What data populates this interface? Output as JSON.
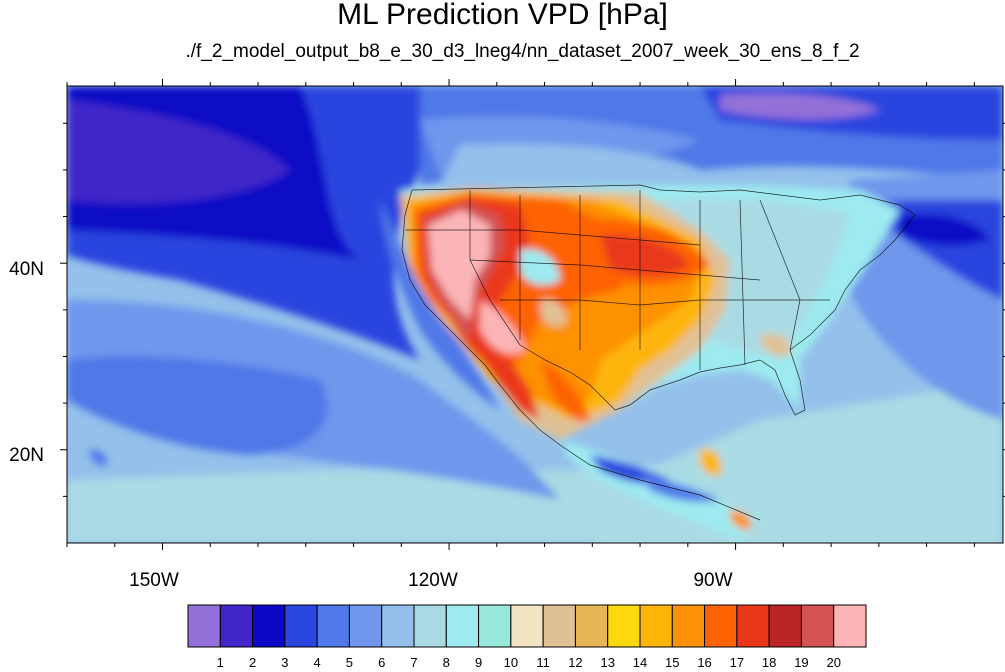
{
  "title": "ML Prediction VPD [hPa]",
  "subtitle": "./f_2_model_output_b8_e_30_d3_lneg4/nn_dataset_2007_week_30_ens_8_f_2",
  "map": {
    "lon_range": [
      -160,
      -62
    ],
    "lat_range": [
      10,
      59
    ],
    "lat_ticks": [
      {
        "lat": 40,
        "label": "40N"
      },
      {
        "lat": 20,
        "label": "20N"
      }
    ],
    "lon_ticks": [
      {
        "lon": -150,
        "label": "150W"
      },
      {
        "lon": -120,
        "label": "120W"
      },
      {
        "lon": -90,
        "label": "90W"
      }
    ]
  },
  "colorbar": {
    "colors": [
      "#9371d8",
      "#4125c8",
      "#0c09c6",
      "#2b45df",
      "#5078e8",
      "#7097ec",
      "#94c0eb",
      "#aadbe4",
      "#9deaf0",
      "#97e8da",
      "#f2e4c3",
      "#e0c196",
      "#e7b657",
      "#fbd90d",
      "#fdb508",
      "#fd9105",
      "#fd6302",
      "#e9371a",
      "#bc2528",
      "#d25352",
      "#fcb5b7"
    ],
    "labels": [
      "1",
      "2",
      "3",
      "4",
      "5",
      "6",
      "7",
      "8",
      "9",
      "10",
      "11",
      "12",
      "13",
      "14",
      "15",
      "16",
      "17",
      "18",
      "19",
      "20"
    ]
  }
}
